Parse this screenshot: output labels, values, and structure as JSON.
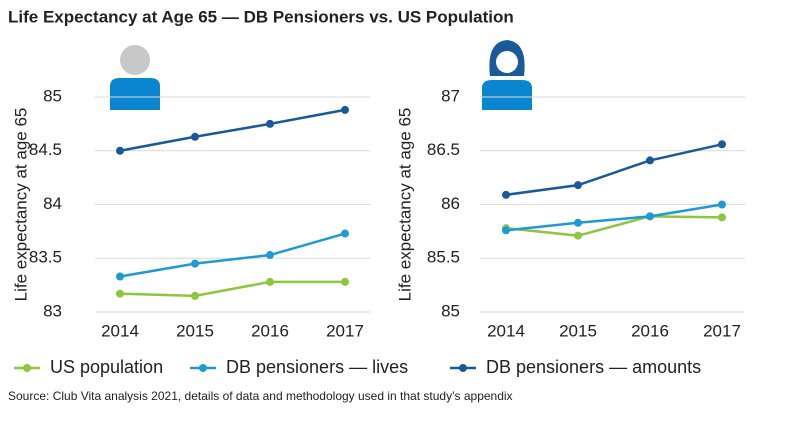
{
  "title": "Life Expectancy at Age 65 — DB Pensioners vs. US Population",
  "source": "Source: Club Vita analysis 2021, details of data and methodology used in that study’s appendix",
  "chart_data": [
    {
      "type": "line",
      "y_label": "Life expectancy at age 65",
      "categories": [
        "2014",
        "2015",
        "2016",
        "2017"
      ],
      "ylim": [
        83,
        85
      ],
      "yticks": [
        83,
        83.5,
        84,
        84.5,
        85
      ],
      "grid": true,
      "series": [
        {
          "name": "US population",
          "color": "#8dc63f",
          "values": [
            83.17,
            83.15,
            83.28,
            83.28
          ]
        },
        {
          "name": "DB pensioners — lives",
          "color": "#1f9ad6",
          "values": [
            83.33,
            83.45,
            83.53,
            83.73
          ]
        },
        {
          "name": "DB pensioners — amounts",
          "color": "#1a5a9a",
          "values": [
            84.5,
            84.63,
            84.75,
            84.88
          ]
        }
      ]
    },
    {
      "type": "line",
      "y_label": "Life expectancy at age 65",
      "categories": [
        "2014",
        "2015",
        "2016",
        "2017"
      ],
      "ylim": [
        85,
        87
      ],
      "yticks": [
        85,
        85.5,
        86,
        86.5,
        87
      ],
      "grid": true,
      "series": [
        {
          "color": "#8dc63f",
          "values": [
            85.78,
            85.71,
            85.89,
            85.88
          ]
        },
        {
          "color": "#1f9ad6",
          "values": [
            85.76,
            85.83,
            85.89,
            86.0
          ]
        },
        {
          "color": "#1a5a9a",
          "values": [
            86.09,
            86.18,
            86.41,
            86.56
          ]
        }
      ]
    }
  ]
}
